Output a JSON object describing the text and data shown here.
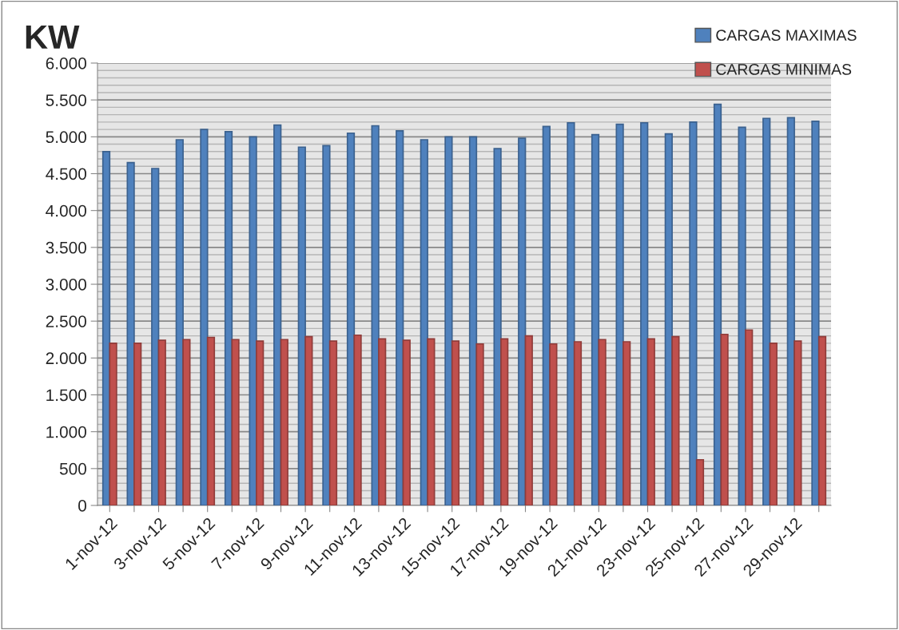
{
  "chart_data": {
    "type": "bar",
    "ylabel": "KW",
    "categories": [
      "1-nov-12",
      null,
      "3-nov-12",
      null,
      "5-nov-12",
      null,
      "7-nov-12",
      null,
      "9-nov-12",
      null,
      "11-nov-12",
      null,
      "13-nov-12",
      null,
      "15-nov-12",
      null,
      "17-nov-12",
      null,
      "19-nov-12",
      null,
      "21-nov-12",
      null,
      "23-nov-12",
      null,
      "25-nov-12",
      null,
      "27-nov-12",
      null,
      "29-nov-12",
      null
    ],
    "series": [
      {
        "name": "CARGAS MAXIMAS",
        "color": "#4f81bd",
        "values": [
          4800,
          4650,
          4570,
          4960,
          5100,
          5070,
          5000,
          5160,
          4860,
          4880,
          5050,
          5150,
          5080,
          4960,
          5000,
          5000,
          4840,
          4980,
          5140,
          5190,
          5030,
          5170,
          5190,
          5040,
          5200,
          5440,
          5130,
          5250,
          5260,
          5210
        ]
      },
      {
        "name": "CARGAS MINIMAS",
        "color": "#c0504d",
        "values": [
          2200,
          2200,
          2240,
          2250,
          2280,
          2250,
          2230,
          2250,
          2290,
          2230,
          2310,
          2260,
          2240,
          2260,
          2230,
          2190,
          2260,
          2300,
          2190,
          2220,
          2250,
          2220,
          2260,
          2290,
          620,
          2320,
          2380,
          2200,
          2230,
          2290
        ]
      }
    ],
    "ylim": [
      0,
      6000
    ],
    "yticks": [
      0,
      500,
      {
        "value": 1000,
        "label": "1.000"
      },
      {
        "value": 1500,
        "label": "1.500"
      },
      {
        "value": 2000,
        "label": "2.000"
      },
      {
        "value": 2500,
        "label": "2.500"
      },
      {
        "value": 3000,
        "label": "3.000"
      },
      {
        "value": 3500,
        "label": "3.500"
      },
      {
        "value": 4000,
        "label": "4.000"
      },
      {
        "value": 4500,
        "label": "4.500"
      },
      {
        "value": 5000,
        "label": "5.000"
      },
      {
        "value": 5500,
        "label": "5.500"
      },
      {
        "value": 6000,
        "label": "6.000"
      }
    ],
    "grid": "y",
    "legend": "top right"
  }
}
